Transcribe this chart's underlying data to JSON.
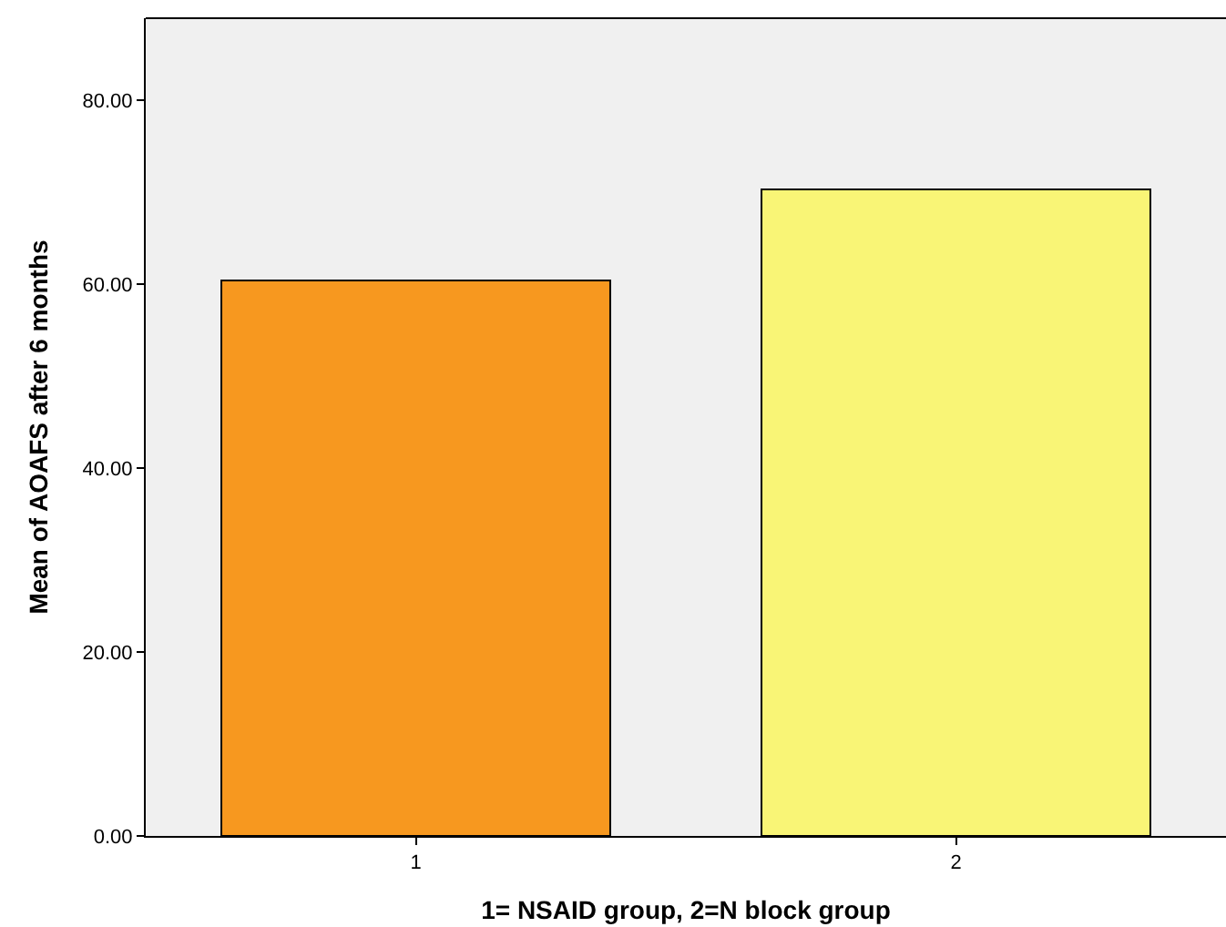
{
  "chart_data": {
    "type": "bar",
    "xlabel": "1= NSAID group, 2=N block group",
    "ylabel": "Mean of AOAFS after 6 months",
    "categories": [
      "1",
      "2"
    ],
    "values": [
      60.4,
      70.3
    ],
    "colors": [
      "#f7981f",
      "#f9f576"
    ],
    "ylim": [
      0,
      88.9
    ],
    "yticks": [
      {
        "value": 0,
        "label": "0.00"
      },
      {
        "value": 20,
        "label": "20.00"
      },
      {
        "value": 40,
        "label": "40.00"
      },
      {
        "value": 60,
        "label": "60.00"
      },
      {
        "value": 80,
        "label": "80.00"
      }
    ],
    "grid": false
  }
}
